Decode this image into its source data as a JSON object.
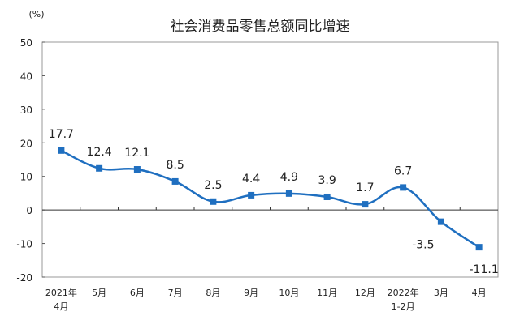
{
  "chart_data": {
    "type": "line",
    "title": "社会消费品零售总额同比增速",
    "ylabel": "(%)",
    "xlabel": "",
    "categories": [
      [
        "2021年",
        "4月"
      ],
      [
        "5月"
      ],
      [
        "6月"
      ],
      [
        "7月"
      ],
      [
        "8月"
      ],
      [
        "9月"
      ],
      [
        "10月"
      ],
      [
        "11月"
      ],
      [
        "12月"
      ],
      [
        "2022年",
        "1-2月"
      ],
      [
        "3月"
      ],
      [
        "4月"
      ]
    ],
    "series": [
      {
        "name": "社会消费品零售总额同比增速",
        "values": [
          17.7,
          12.4,
          12.1,
          8.5,
          2.5,
          4.4,
          4.9,
          3.9,
          1.7,
          6.7,
          -3.5,
          -11.1
        ]
      }
    ],
    "data_labels": [
      "17.7",
      "12.4",
      "12.1",
      "8.5",
      "2.5",
      "4.4",
      "4.9",
      "3.9",
      "1.7",
      "6.7",
      "-3.5",
      "-11.1"
    ],
    "ylim": [
      -20,
      50
    ],
    "yticks": [
      -20,
      -10,
      0,
      10,
      20,
      30,
      40,
      50
    ],
    "grid": false,
    "legend": "none",
    "line_color": "#1f6fc0"
  }
}
